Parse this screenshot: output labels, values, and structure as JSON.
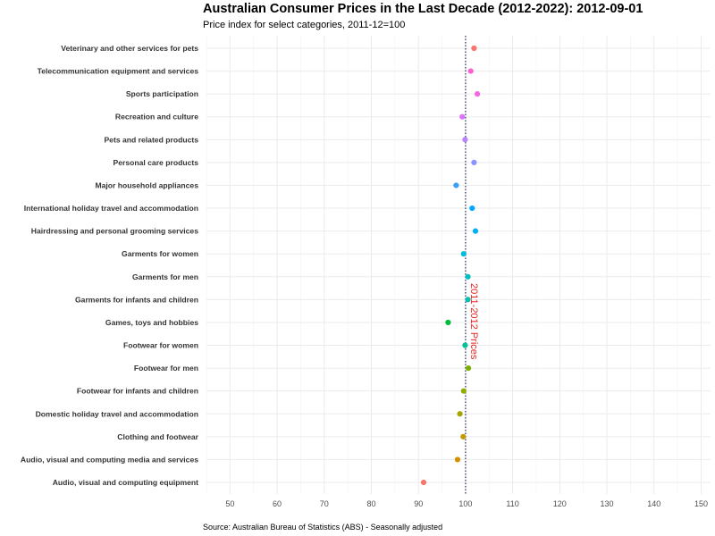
{
  "title": "Australian Consumer Prices in the Last Decade (2012-2022): 2012-09-01",
  "subtitle": "Price index for select categories, 2011-12=100",
  "caption": "Source: Australian Bureau of Statistics (ABS) - Seasonally adjusted",
  "chart_data": {
    "type": "scatter",
    "title": "Australian Consumer Prices in the Last Decade (2012-2022): 2012-09-01",
    "subtitle": "Price index for select categories, 2011-12=100",
    "xlabel": "",
    "ylabel": "",
    "xlim": [
      45,
      152
    ],
    "xticks": [
      50,
      60,
      70,
      80,
      90,
      100,
      110,
      120,
      130,
      140,
      150
    ],
    "grid": true,
    "reference_line": {
      "x": 100,
      "label": "2011-2012 Prices",
      "label_color": "#E8231F",
      "style": "dotted"
    },
    "categories": [
      "Veterinary and other services for pets",
      "Telecommunication equipment and services",
      "Sports participation",
      "Recreation and culture",
      "Pets and related products",
      "Personal care products",
      "Major household appliances",
      "International holiday travel and accommodation",
      "Hairdressing and personal grooming services",
      "Garments for women",
      "Garments for men",
      "Garments for infants and children",
      "Games, toys and hobbies",
      "Footwear for women",
      "Footwear for men",
      "Footwear for infants and children",
      "Domestic holiday travel and accommodation",
      "Clothing and footwear",
      "Audio, visual and computing media and services",
      "Audio, visual and computing equipment"
    ],
    "values": [
      101.8,
      101.1,
      102.5,
      99.3,
      99.9,
      101.8,
      98.0,
      101.4,
      102.1,
      99.6,
      100.5,
      100.5,
      96.3,
      99.9,
      100.6,
      99.6,
      98.8,
      99.5,
      98.3,
      91.1
    ],
    "colors": [
      "#F8766D",
      "#FD61D1",
      "#F564E3",
      "#DB72FB",
      "#B983FF",
      "#8B93FF",
      "#3A9FF5",
      "#00A9FF",
      "#00B0F6",
      "#00BCD8",
      "#00BFC4",
      "#00C0AF",
      "#00BA38",
      "#00C19A",
      "#7CAE00",
      "#93AA00",
      "#A3A500",
      "#C49A00",
      "#D89000",
      "#F8766D"
    ]
  }
}
